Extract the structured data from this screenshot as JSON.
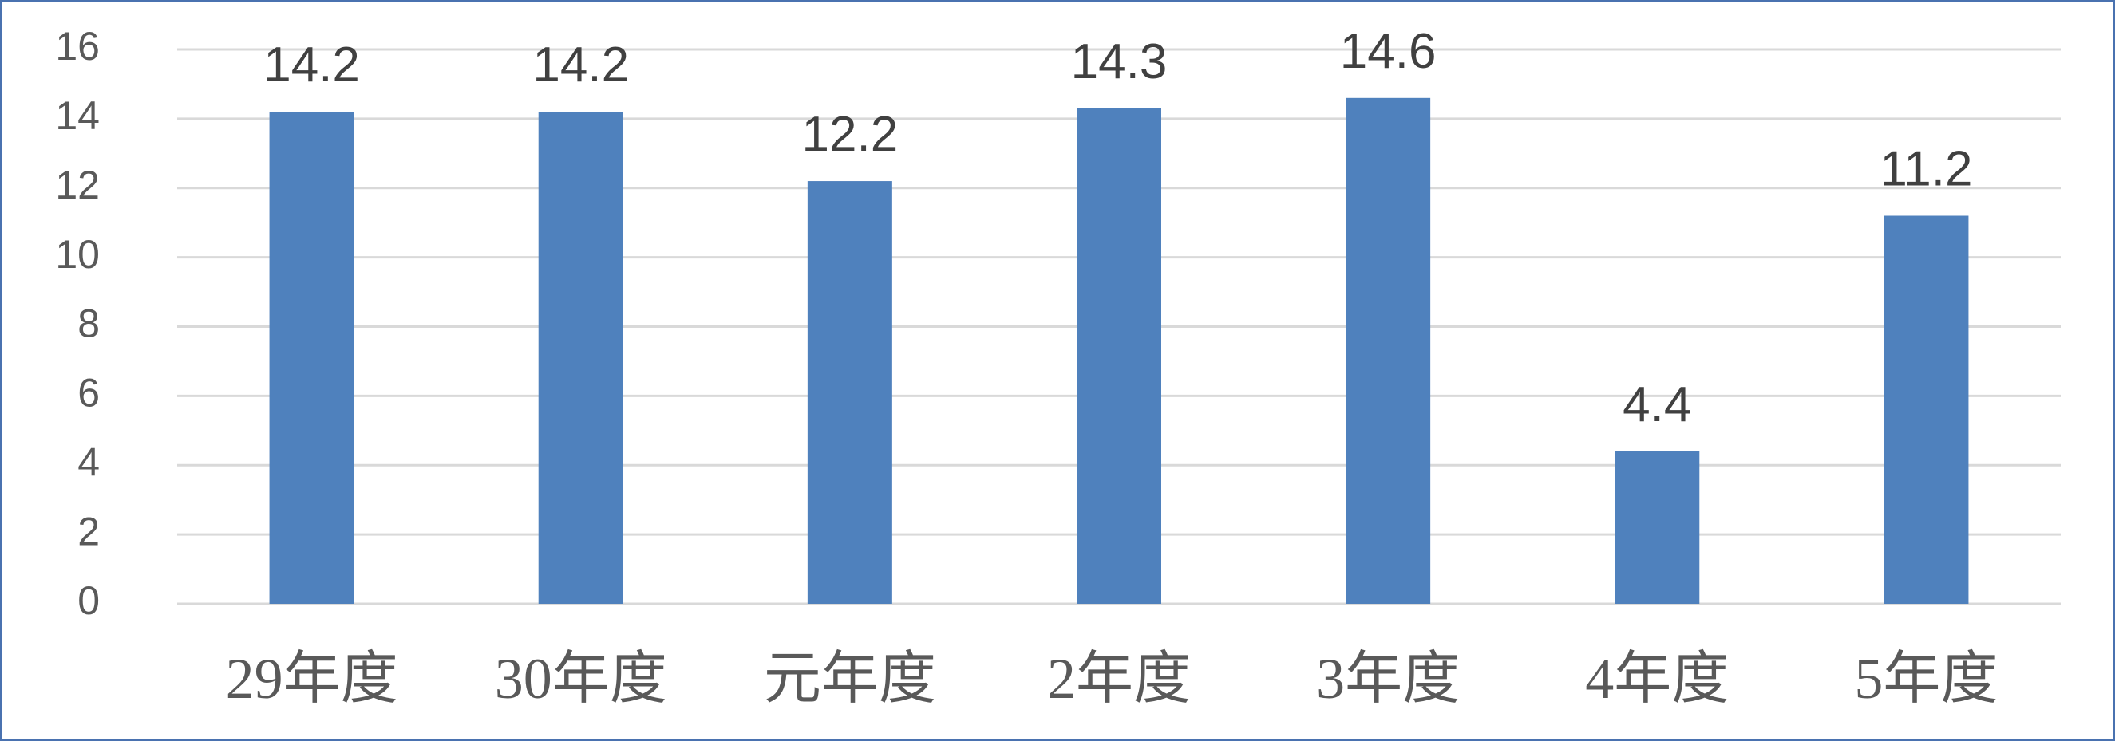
{
  "chart_data": {
    "type": "bar",
    "title": "",
    "xlabel": "",
    "ylabel": "",
    "categories": [
      "29年度",
      "30年度",
      "元年度",
      "2年度",
      "3年度",
      "4年度",
      "5年度"
    ],
    "values": [
      14.2,
      14.2,
      12.2,
      14.3,
      14.6,
      4.4,
      11.2
    ],
    "data_labels": [
      "14.2",
      "14.2",
      "12.2",
      "14.3",
      "14.6",
      "4.4",
      "11.2"
    ],
    "ylim": [
      0,
      16
    ],
    "yticks": [
      0,
      2,
      4,
      6,
      8,
      10,
      12,
      14,
      16
    ],
    "ytick_labels": [
      "0",
      "2",
      "4",
      "6",
      "8",
      "10",
      "12",
      "14",
      "16"
    ],
    "grid": true,
    "legend": "none",
    "colors": {
      "bar": "#4f81bd",
      "grid": "#d9d9d9",
      "border": "#4a72b0",
      "tick_text": "#595959",
      "label_text": "#404040"
    }
  }
}
